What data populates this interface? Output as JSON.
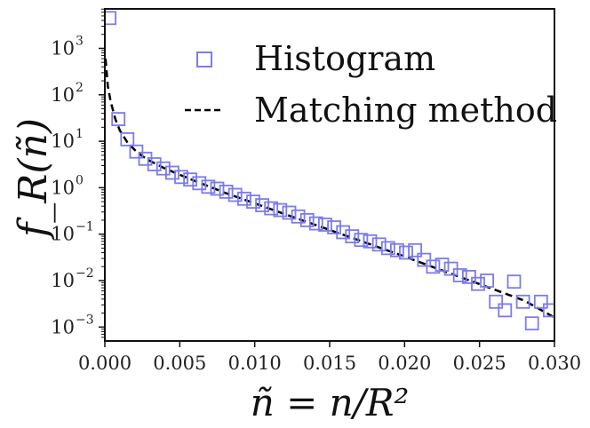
{
  "chart_data": {
    "type": "scatter",
    "xlabel": "ñ = n/R²",
    "ylabel": "f_R(ñ)",
    "xlim": [
      0.0,
      0.03
    ],
    "ylim_log10": [
      -3.3,
      3.85
    ],
    "yscale": "log",
    "x_ticks": [
      0.0,
      0.005,
      0.01,
      0.015,
      0.02,
      0.025,
      0.03
    ],
    "x_tick_labels": [
      "0.000",
      "0.005",
      "0.010",
      "0.015",
      "0.020",
      "0.025",
      "0.030"
    ],
    "y_ticks_exp": [
      -3,
      -2,
      -1,
      0,
      1,
      2,
      3
    ],
    "y_tick_labels": [
      "10",
      "10",
      "10",
      "10",
      "10",
      "10",
      "10"
    ],
    "y_tick_exponents": [
      "−3",
      "−2",
      "−1",
      "0",
      "1",
      "2",
      "3"
    ],
    "legend": {
      "position": "top-center",
      "entries": [
        {
          "label": "Histogram",
          "marker": "square-open",
          "color": "#7b7bee"
        },
        {
          "label": "Matching method",
          "marker": "dashed-line",
          "color": "#000000"
        }
      ]
    },
    "series": [
      {
        "name": "Histogram",
        "marker": "square-open",
        "color": "#7b7bee",
        "x": [
          0.0003,
          0.0009,
          0.0015,
          0.0021,
          0.0027,
          0.0033,
          0.0039,
          0.0045,
          0.0051,
          0.0057,
          0.0063,
          0.0069,
          0.0075,
          0.0081,
          0.0087,
          0.0093,
          0.0099,
          0.0105,
          0.0111,
          0.0117,
          0.0123,
          0.0129,
          0.0135,
          0.0141,
          0.0147,
          0.0153,
          0.0159,
          0.0165,
          0.0171,
          0.0177,
          0.0183,
          0.0189,
          0.0195,
          0.0201,
          0.0207,
          0.0213,
          0.0219,
          0.0225,
          0.0231,
          0.0237,
          0.0243,
          0.0249,
          0.0255,
          0.0261,
          0.0267,
          0.0273,
          0.0279,
          0.0285,
          0.0291,
          0.0297
        ],
        "y": [
          4500,
          30,
          11,
          6,
          4.2,
          3.2,
          2.6,
          2.1,
          1.7,
          1.5,
          1.25,
          1.05,
          0.95,
          0.82,
          0.7,
          0.58,
          0.5,
          0.42,
          0.36,
          0.33,
          0.29,
          0.24,
          0.2,
          0.17,
          0.16,
          0.14,
          0.11,
          0.09,
          0.075,
          0.07,
          0.06,
          0.05,
          0.045,
          0.04,
          0.045,
          0.028,
          0.02,
          0.022,
          0.018,
          0.013,
          0.012,
          0.0085,
          0.01,
          0.0035,
          0.0023,
          0.0095,
          0.0035,
          0.0012,
          0.0035,
          0.0023
        ]
      },
      {
        "name": "Matching method",
        "style": "dashed",
        "color": "#000000",
        "x": [
          5e-05,
          0.0002,
          0.0004,
          0.0007,
          0.001,
          0.0015,
          0.002,
          0.0025,
          0.003,
          0.004,
          0.005,
          0.006,
          0.007,
          0.008,
          0.009,
          0.01,
          0.012,
          0.014,
          0.016,
          0.018,
          0.02,
          0.022,
          0.024,
          0.026,
          0.028,
          0.03
        ],
        "y": [
          600,
          150,
          70,
          30,
          17,
          9.5,
          6.5,
          4.8,
          3.8,
          2.6,
          1.9,
          1.4,
          1.05,
          0.78,
          0.6,
          0.46,
          0.27,
          0.16,
          0.095,
          0.056,
          0.033,
          0.019,
          0.011,
          0.0064,
          0.0037,
          0.0016
        ]
      }
    ]
  }
}
